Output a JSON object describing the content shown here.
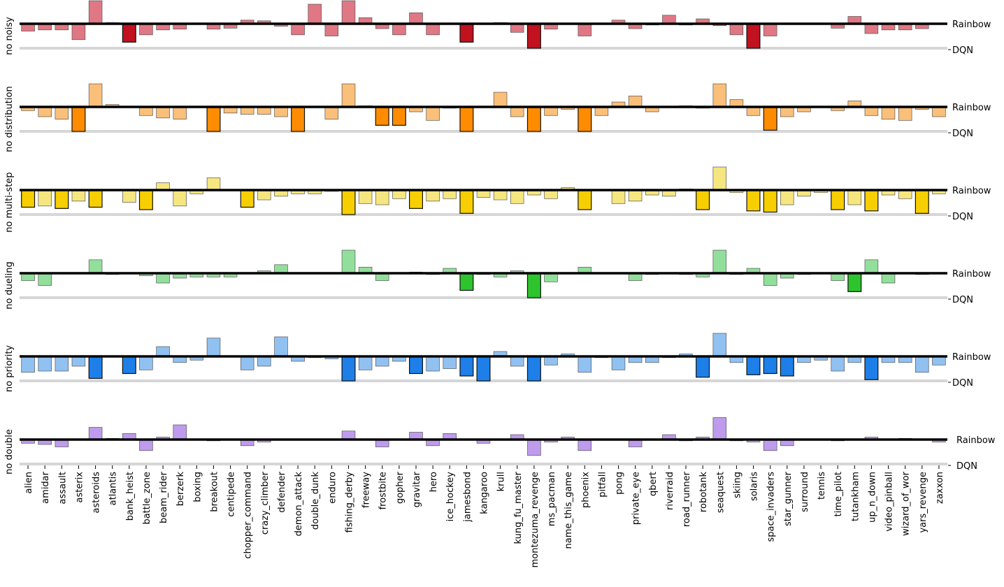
{
  "chart_data": {
    "type": "bar",
    "title": "",
    "xlabel": "",
    "ylabel": "",
    "description": "Per-game normalized score of each ablation relative to Rainbow (0) and DQN (-1), one panel per ablation",
    "reference_lines": {
      "top": "Rainbow",
      "bottom": "DQN"
    },
    "ylim": [
      -1,
      1
    ],
    "categories": [
      "alien",
      "amidar",
      "assault",
      "asterix",
      "asteroids",
      "atlantis",
      "bank_heist",
      "battle_zone",
      "beam_rider",
      "berzerk",
      "boxing",
      "breakout",
      "centipede",
      "chopper_command",
      "crazy_climber",
      "defender",
      "demon_attack",
      "double_dunk",
      "enduro",
      "fishing_derby",
      "freeway",
      "frostbite",
      "gopher",
      "gravitar",
      "hero",
      "ice_hockey",
      "jamesbond",
      "kangaroo",
      "krull",
      "kung_fu_master",
      "montezuma_revenge",
      "ms_pacman",
      "name_this_game",
      "phoenix",
      "pitfall",
      "pong",
      "private_eye",
      "qbert",
      "riverraid",
      "road_runner",
      "robotank",
      "seaquest",
      "skiing",
      "solaris",
      "space_invaders",
      "star_gunner",
      "surround",
      "tennis",
      "time_pilot",
      "tutankham",
      "up_n_down",
      "video_pinball",
      "wizard_of_wor",
      "yars_revenge",
      "zaxxon"
    ],
    "series": [
      {
        "name": "no noisy",
        "color": "#d9606e",
        "strong_color": "#c0121f",
        "values": [
          -0.3,
          -0.25,
          -0.25,
          -0.65,
          1.0,
          0.05,
          -0.75,
          -0.45,
          -0.25,
          -0.22,
          0,
          -0.22,
          -0.18,
          0.15,
          0.12,
          -0.1,
          -0.45,
          0.8,
          -0.5,
          1.0,
          0.25,
          -0.2,
          -0.45,
          0.45,
          -0.45,
          0,
          -0.75,
          0,
          0.05,
          -0.35,
          -1.0,
          -0.22,
          0,
          -0.5,
          0,
          0.15,
          -0.2,
          -0.05,
          0.35,
          -0.05,
          0.2,
          -0.08,
          -0.45,
          -1.0,
          -0.5,
          0,
          0,
          0,
          -0.18,
          0.3,
          -0.4,
          -0.25,
          -0.25,
          -0.2,
          0
        ]
      },
      {
        "name": "no distribution",
        "color": "#f9b461",
        "strong_color": "#ff8c00",
        "values": [
          -0.15,
          -0.4,
          -0.5,
          -1.0,
          1.0,
          0.1,
          0,
          -0.35,
          -0.45,
          -0.5,
          0,
          -1.0,
          -0.25,
          -0.3,
          -0.3,
          -0.4,
          -1.0,
          0,
          -0.5,
          1.0,
          0.05,
          -0.75,
          -0.75,
          -0.2,
          -0.55,
          -0.05,
          -1.0,
          0,
          0.6,
          -0.4,
          -1.0,
          -0.35,
          -0.1,
          -1.0,
          -0.35,
          0.2,
          0.45,
          -0.2,
          0,
          0.05,
          -0.05,
          1.0,
          0.3,
          -0.35,
          -0.95,
          -0.4,
          -0.2,
          0,
          -0.15,
          0.25,
          -0.35,
          -0.5,
          -0.55,
          -0.1,
          -0.4
        ]
      },
      {
        "name": "no multi-step",
        "color": "#f5e26a",
        "strong_color": "#f7cf00",
        "values": [
          -0.7,
          -0.65,
          -0.75,
          -0.45,
          -0.7,
          0,
          -0.5,
          -0.8,
          0.3,
          -0.65,
          -0.15,
          0.5,
          0,
          -0.7,
          -0.4,
          -0.25,
          -0.15,
          -0.15,
          -0.05,
          -1.0,
          -0.55,
          -0.6,
          -0.35,
          -0.75,
          -0.45,
          -0.35,
          -0.95,
          -0.3,
          -0.4,
          -0.55,
          -0.2,
          -0.35,
          0.1,
          -0.8,
          0,
          -0.55,
          -0.45,
          -0.2,
          -0.25,
          0.05,
          -0.8,
          0.95,
          -0.1,
          -0.85,
          -0.9,
          -0.6,
          -0.25,
          -0.1,
          -0.8,
          -0.6,
          -0.85,
          -0.2,
          -0.35,
          -0.95,
          -0.15
        ]
      },
      {
        "name": "no dueling",
        "color": "#7fd98a",
        "strong_color": "#2ec42e",
        "values": [
          -0.3,
          -0.5,
          0,
          0,
          0.55,
          -0.05,
          0,
          -0.1,
          -0.4,
          -0.2,
          -0.15,
          -0.15,
          -0.15,
          0,
          0.1,
          0.35,
          0,
          0,
          0,
          1.0,
          0.25,
          -0.3,
          0,
          0.05,
          -0.05,
          0.2,
          -0.7,
          -0.05,
          -0.15,
          0.1,
          -1.0,
          -0.35,
          0,
          0.25,
          0,
          0,
          -0.3,
          -0.05,
          0,
          -0.05,
          -0.15,
          1.0,
          -0.05,
          0.2,
          -0.5,
          -0.2,
          -0.05,
          0,
          -0.3,
          -0.75,
          0.55,
          -0.4,
          0,
          -0.05,
          0
        ]
      },
      {
        "name": "no priority",
        "color": "#7eb6ef",
        "strong_color": "#1e7fe8",
        "values": [
          -0.65,
          -0.6,
          -0.6,
          -0.4,
          -0.9,
          0,
          -0.7,
          -0.55,
          0.4,
          -0.25,
          -0.15,
          0.75,
          0,
          -0.55,
          -0.4,
          0.8,
          -0.2,
          -0.05,
          -0.1,
          -1.0,
          -0.55,
          -0.4,
          -0.2,
          -0.7,
          -0.6,
          -0.5,
          -0.8,
          -1.0,
          0.2,
          -0.4,
          -1.0,
          -0.35,
          0.1,
          -0.65,
          -0.05,
          -0.55,
          -0.25,
          -0.25,
          -0.05,
          0.1,
          -0.85,
          1.0,
          -0.25,
          -0.75,
          -0.7,
          -0.8,
          -0.25,
          -0.15,
          -0.6,
          -0.25,
          -0.95,
          -0.25,
          -0.25,
          -0.65,
          -0.35
        ]
      },
      {
        "name": "no double",
        "color": "#b48aea",
        "strong_color": "#9a5fe0",
        "values": [
          -0.15,
          -0.2,
          -0.3,
          0,
          0.5,
          0.05,
          0.25,
          -0.45,
          0.1,
          0.6,
          0,
          -0.05,
          0,
          -0.25,
          -0.1,
          0,
          0,
          0,
          0,
          0.35,
          0,
          -0.3,
          0,
          0.3,
          -0.25,
          0.25,
          0,
          -0.15,
          0,
          0.2,
          -0.65,
          -0.1,
          0.1,
          -0.45,
          0,
          0,
          -0.3,
          0,
          0.2,
          -0.05,
          0.1,
          0.9,
          -0.05,
          -0.1,
          -0.45,
          -0.25,
          0,
          0,
          -0.05,
          0,
          0.1,
          0,
          0.05,
          0,
          -0.1
        ]
      }
    ]
  }
}
